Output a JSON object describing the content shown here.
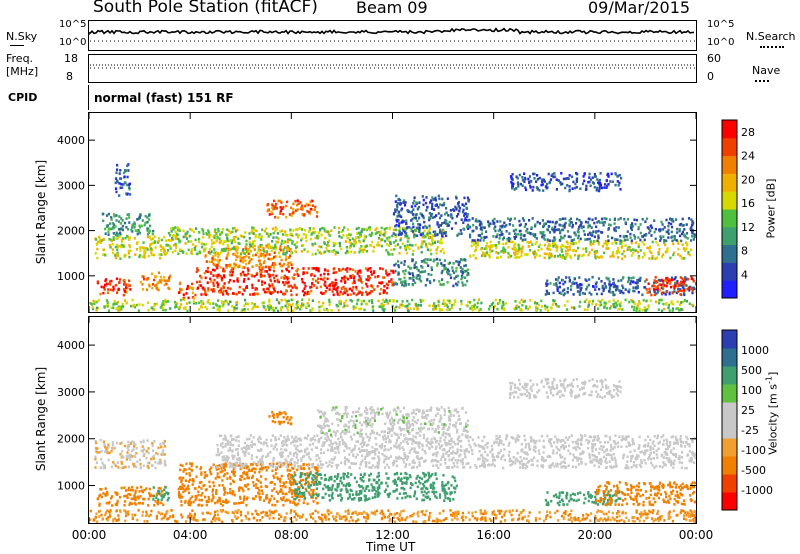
{
  "header": {
    "station": "South Pole Station (fitACF)",
    "beam": "Beam 09",
    "date": "09/Mar/2015"
  },
  "top_strip": {
    "nsky_label": "N.Sky",
    "nsearch_label": "N.Search",
    "freq_label_1": "Freq.",
    "freq_label_2": "[MHz]",
    "nave_label": "Nave",
    "cpid_label": "CPID",
    "cpid_value": "normal (fast) 151 RF",
    "noise_ticks_left": [
      "10^5",
      "10^0"
    ],
    "noise_ticks_right": [
      "10^5",
      "10^0"
    ],
    "freq_ticks_left": [
      "18",
      "8"
    ],
    "nave_ticks_right": [
      "60",
      "0"
    ]
  },
  "colors": {
    "power_scale": [
      "#1f1fff",
      "#2b3fb0",
      "#2f6f8f",
      "#3f9f6f",
      "#4fbf3f",
      "#d8d800",
      "#f0b000",
      "#f08000",
      "#f04000",
      "#ff0000"
    ],
    "velocity_scale": [
      "#ff0000",
      "#f04000",
      "#f08000",
      "#f0a030",
      "#c8c8c8",
      "#c8c8c8",
      "#60c040",
      "#3f9f6f",
      "#2f6f8f",
      "#2b3fb0"
    ],
    "frame": "#000000"
  },
  "chart_data": [
    {
      "type": "heatmap",
      "name": "power",
      "ylabel": "Slant Range [km]",
      "xlabel": "Time UT",
      "x_ticks": [
        "00:00",
        "04:00",
        "08:00",
        "12:00",
        "16:00",
        "20:00",
        "00:00"
      ],
      "y_ticks": [
        1000,
        2000,
        3000,
        4000
      ],
      "ylim": [
        200,
        4600
      ],
      "xlim_hours": [
        0,
        24
      ],
      "colorbar": {
        "label": "Power [dB]",
        "ticks": [
          4,
          8,
          12,
          16,
          20,
          24,
          28
        ],
        "range": [
          0,
          30
        ]
      },
      "regions": [
        {
          "t0": 0.3,
          "t1": 1.6,
          "r0": 600,
          "r1": 1000,
          "v": 26
        },
        {
          "t0": 0.2,
          "t1": 3.0,
          "r0": 1400,
          "r1": 1900,
          "v": 17
        },
        {
          "t0": 0.5,
          "t1": 2.5,
          "r0": 1900,
          "r1": 2400,
          "v": 10
        },
        {
          "t0": 1.0,
          "t1": 1.6,
          "r0": 2800,
          "r1": 3500,
          "v": 6
        },
        {
          "t0": 2.0,
          "t1": 3.2,
          "r0": 700,
          "r1": 1100,
          "v": 22
        },
        {
          "t0": 3.5,
          "t1": 4.2,
          "r0": 500,
          "r1": 900,
          "v": 24
        },
        {
          "t0": 4.2,
          "t1": 12.0,
          "r0": 600,
          "r1": 1200,
          "v": 27
        },
        {
          "t0": 4.5,
          "t1": 8.0,
          "r0": 1200,
          "r1": 1700,
          "v": 22
        },
        {
          "t0": 3.0,
          "t1": 14.0,
          "r0": 1500,
          "r1": 2100,
          "v": 15
        },
        {
          "t0": 7.0,
          "t1": 9.0,
          "r0": 2300,
          "r1": 2700,
          "v": 24
        },
        {
          "t0": 12.0,
          "t1": 15.0,
          "r0": 1900,
          "r1": 2800,
          "v": 6
        },
        {
          "t0": 12.0,
          "t1": 15.0,
          "r0": 800,
          "r1": 1400,
          "v": 9
        },
        {
          "t0": 15.0,
          "t1": 23.8,
          "r0": 1400,
          "r1": 1800,
          "v": 17
        },
        {
          "t0": 15.0,
          "t1": 24.0,
          "r0": 1800,
          "r1": 2300,
          "v": 7
        },
        {
          "t0": 16.6,
          "t1": 21.0,
          "r0": 2900,
          "r1": 3300,
          "v": 5
        },
        {
          "t0": 18.0,
          "t1": 24.0,
          "r0": 600,
          "r1": 1000,
          "v": 6
        },
        {
          "t0": 22.0,
          "t1": 24.0,
          "r0": 600,
          "r1": 1000,
          "v": 27
        },
        {
          "t0": 0.0,
          "t1": 24.0,
          "r0": 250,
          "r1": 500,
          "v": 15
        }
      ]
    },
    {
      "type": "heatmap",
      "name": "velocity",
      "ylabel": "Slant Range [km]",
      "xlabel": "Time UT",
      "x_ticks": [
        "00:00",
        "04:00",
        "08:00",
        "12:00",
        "16:00",
        "20:00",
        "00:00"
      ],
      "y_ticks": [
        1000,
        2000,
        3000,
        4000
      ],
      "ylim": [
        200,
        4600
      ],
      "xlim_hours": [
        0,
        24
      ],
      "colorbar": {
        "label": "Velocity [m s^-1]",
        "ticks": [
          "1000",
          "500",
          "100",
          "25",
          "-25",
          "-100",
          "-500",
          "-1000"
        ]
      },
      "regions": [
        {
          "t0": 0.3,
          "t1": 3.0,
          "r0": 600,
          "r1": 1000,
          "v": -200
        },
        {
          "t0": 0.2,
          "t1": 3.0,
          "r0": 1400,
          "r1": 2000,
          "v": -20
        },
        {
          "t0": 2.5,
          "t1": 3.2,
          "r0": 700,
          "r1": 1000,
          "v": 300
        },
        {
          "t0": 3.5,
          "t1": 9.0,
          "r0": 600,
          "r1": 1500,
          "v": -200
        },
        {
          "t0": 8.0,
          "t1": 14.5,
          "r0": 700,
          "r1": 1300,
          "v": 300
        },
        {
          "t0": 5.0,
          "t1": 24.0,
          "r0": 1400,
          "r1": 2100,
          "v": 0
        },
        {
          "t0": 9.0,
          "t1": 15.0,
          "r0": 2100,
          "r1": 2700,
          "v": 10
        },
        {
          "t0": 7.0,
          "t1": 8.0,
          "r0": 2300,
          "r1": 2600,
          "v": -200
        },
        {
          "t0": 16.6,
          "t1": 21.0,
          "r0": 2900,
          "r1": 3300,
          "v": 0
        },
        {
          "t0": 18.0,
          "t1": 21.0,
          "r0": 600,
          "r1": 900,
          "v": 300
        },
        {
          "t0": 20.0,
          "t1": 24.0,
          "r0": 600,
          "r1": 1100,
          "v": -300
        },
        {
          "t0": 0.0,
          "t1": 24.0,
          "r0": 250,
          "r1": 500,
          "v": -100
        }
      ]
    }
  ]
}
